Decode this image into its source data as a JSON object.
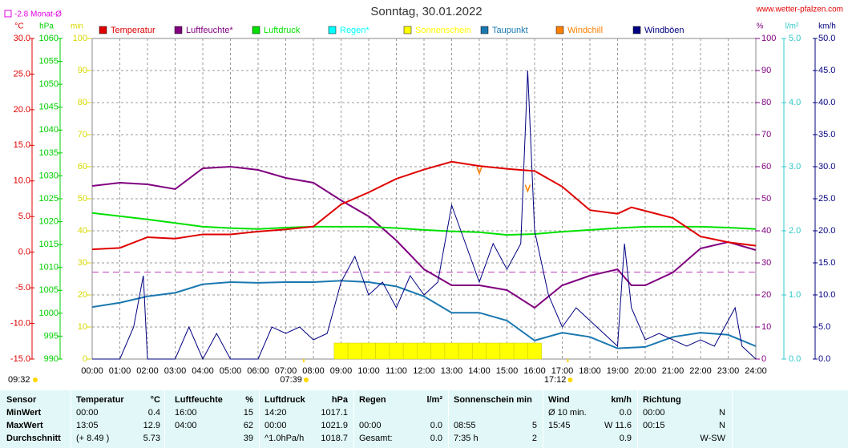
{
  "chart_data": {
    "type": "line",
    "title": "Sonntag, 30.01.2022",
    "source": "www.wetter-pfalzen.com",
    "monthly_average": {
      "value": -2.8,
      "label": "-2.8 Monat-Ø",
      "axis": 0
    },
    "updated": "09:32",
    "sunrise": {
      "value": 7.65,
      "label": "07:39"
    },
    "sunset": {
      "value": 17.2,
      "label": "17:12"
    },
    "xlim": [
      0,
      24
    ],
    "xticks": [
      {
        "value": 0,
        "label": "00:00"
      },
      {
        "value": 1,
        "label": "01:00"
      },
      {
        "value": 2,
        "label": "02:00"
      },
      {
        "value": 3,
        "label": "03:00"
      },
      {
        "value": 4,
        "label": "04:00"
      },
      {
        "value": 5,
        "label": "05:00"
      },
      {
        "value": 6,
        "label": "06:00"
      },
      {
        "value": 7,
        "label": "07:00"
      },
      {
        "value": 8,
        "label": "08:00"
      },
      {
        "value": 9,
        "label": "09:00"
      },
      {
        "value": 10,
        "label": "10:00"
      },
      {
        "value": 11,
        "label": "11:00"
      },
      {
        "value": 12,
        "label": "12:00"
      },
      {
        "value": 13,
        "label": "13:00"
      },
      {
        "value": 14,
        "label": "14:00"
      },
      {
        "value": 15,
        "label": "15:00"
      },
      {
        "value": 16,
        "label": "16:00"
      },
      {
        "value": 17,
        "label": "17:00"
      },
      {
        "value": 18,
        "label": "18:00"
      },
      {
        "value": 19,
        "label": "19:00"
      },
      {
        "value": 20,
        "label": "20:00"
      },
      {
        "value": 21,
        "label": "21:00"
      },
      {
        "value": 22,
        "label": "22:00"
      },
      {
        "value": 23,
        "label": "23:00"
      },
      {
        "value": 24,
        "label": "24:00"
      }
    ],
    "grid": true,
    "axes": [
      {
        "unit": "°C",
        "color": "#e00000",
        "lim": [
          -15,
          30
        ],
        "ticks": [
          {
            "value": -15,
            "label": "-15.0"
          },
          {
            "value": -10,
            "label": "-10.0"
          },
          {
            "value": -5,
            "label": "-5.0"
          },
          {
            "value": 0,
            "label": "0.0"
          },
          {
            "value": 5,
            "label": "5.0"
          },
          {
            "value": 10,
            "label": "10.0"
          },
          {
            "value": 15,
            "label": "15.0"
          },
          {
            "value": 20,
            "label": "20.0"
          },
          {
            "value": 25,
            "label": "25.0"
          },
          {
            "value": 30,
            "label": "30.0"
          }
        ]
      },
      {
        "unit": "hPa",
        "color": "#00d000",
        "lim": [
          990,
          1060
        ],
        "ticks": [
          990,
          995,
          1000,
          1005,
          1010,
          1015,
          1020,
          1025,
          1030,
          1035,
          1040,
          1045,
          1050,
          1055,
          1060
        ]
      },
      {
        "unit": "min",
        "color": "#d8d800",
        "lim": [
          0,
          100
        ],
        "ticks": [
          0,
          10,
          20,
          30,
          40,
          50,
          60,
          70,
          80,
          90,
          100
        ]
      },
      {
        "unit": "%",
        "color": "#800080",
        "lim": [
          0,
          100
        ],
        "ticks": [
          0,
          10,
          20,
          30,
          40,
          50,
          60,
          70,
          80,
          90,
          100
        ]
      },
      {
        "unit": "l/m²",
        "color": "#30c8c8",
        "lim": [
          0,
          5
        ],
        "ticks": [
          {
            "value": 0,
            "label": "0.0"
          },
          {
            "value": 1,
            "label": "1.0"
          },
          {
            "value": 2,
            "label": "2.0"
          },
          {
            "value": 3,
            "label": "3.0"
          },
          {
            "value": 4,
            "label": "4.0"
          },
          {
            "value": 5,
            "label": "5.0"
          }
        ]
      },
      {
        "unit": "km/h",
        "color": "#000080",
        "lim": [
          0,
          50
        ],
        "ticks": [
          {
            "value": 0,
            "label": "0.0"
          },
          {
            "value": 5,
            "label": "5.0"
          },
          {
            "value": 10,
            "label": "10.0"
          },
          {
            "value": 15,
            "label": "15.0"
          },
          {
            "value": 20,
            "label": "20.0"
          },
          {
            "value": 25,
            "label": "25.0"
          },
          {
            "value": 30,
            "label": "30.0"
          },
          {
            "value": 35,
            "label": "35.0"
          },
          {
            "value": 40,
            "label": "40.0"
          },
          {
            "value": 45,
            "label": "45.0"
          },
          {
            "value": 50,
            "label": "50.0"
          }
        ]
      }
    ],
    "series": [
      {
        "name": "Temperatur",
        "color": "#e00000",
        "axis": 0,
        "style": "line",
        "x": [
          0,
          1,
          2,
          3,
          4,
          5,
          6,
          7,
          8,
          9,
          10,
          11,
          12,
          13,
          14,
          15,
          16,
          17,
          18,
          19,
          19.5,
          20,
          21,
          22,
          23,
          24
        ],
        "values": [
          0.4,
          0.6,
          2.1,
          1.9,
          2.5,
          2.5,
          2.9,
          3.2,
          3.6,
          6.7,
          8.4,
          10.3,
          11.6,
          12.7,
          12.1,
          11.7,
          11.4,
          9.2,
          5.9,
          5.4,
          6.3,
          5.8,
          4.8,
          2.2,
          1.4,
          0.9
        ]
      },
      {
        "name": "Luftfeuchte*",
        "color": "#800080",
        "axis": 3,
        "style": "line",
        "x": [
          0,
          1,
          2,
          3,
          4,
          5,
          6,
          7,
          8,
          9,
          10,
          11,
          12,
          13,
          14,
          15,
          16,
          17,
          18,
          19,
          19.5,
          20,
          21,
          22,
          23,
          24
        ],
        "values": [
          54,
          55,
          54.5,
          53,
          59.5,
          60,
          59,
          56.5,
          55,
          49.5,
          44.5,
          37,
          28,
          23,
          23,
          21.5,
          16,
          23,
          26,
          28,
          23,
          23,
          27,
          34.5,
          36.5,
          34
        ]
      },
      {
        "name": "Luftdruck",
        "color": "#00e000",
        "axis": 1,
        "style": "line",
        "x": [
          0,
          1,
          2,
          3,
          4,
          5,
          6,
          7,
          8,
          9,
          10,
          11,
          12,
          13,
          14,
          15,
          16,
          17,
          18,
          19,
          20,
          21,
          22,
          23,
          24
        ],
        "values": [
          1021.9,
          1021.2,
          1020.5,
          1019.7,
          1018.9,
          1018.6,
          1018.4,
          1018.7,
          1018.9,
          1018.9,
          1018.9,
          1018.6,
          1018.2,
          1017.9,
          1017.7,
          1017.1,
          1017.3,
          1017.8,
          1018.2,
          1018.6,
          1018.9,
          1018.9,
          1018.9,
          1018.7,
          1018.4
        ]
      },
      {
        "name": "Regen*",
        "color": "#00ffff",
        "axis": 4,
        "style": "line",
        "x": [],
        "values": []
      },
      {
        "name": "Sonnenschein",
        "color": "#ffff00",
        "axis": 2,
        "style": "bar",
        "x": [
          9,
          9.5,
          10,
          10.5,
          11,
          11.5,
          12,
          12.5,
          13,
          13.5,
          14,
          14.5,
          15,
          15.5,
          16
        ],
        "values": [
          5,
          5,
          5,
          5,
          5,
          5,
          5,
          5,
          5,
          5,
          5,
          5,
          5,
          5,
          5
        ]
      },
      {
        "name": "Taupunkt",
        "color": "#1a78b0",
        "axis": 0,
        "style": "line",
        "x": [
          0,
          1,
          2,
          3,
          4,
          5,
          6,
          7,
          8,
          9,
          10,
          11,
          12,
          13,
          14,
          15,
          16,
          17,
          18,
          19,
          20,
          21,
          22,
          23,
          24
        ],
        "values": [
          -7.7,
          -7.1,
          -6.2,
          -5.7,
          -4.5,
          -4.2,
          -4.3,
          -4.2,
          -4.2,
          -4.0,
          -4.2,
          -4.8,
          -6.2,
          -8.5,
          -8.5,
          -9.6,
          -12.4,
          -11.3,
          -11.9,
          -13.5,
          -13.3,
          -11.9,
          -11.3,
          -11.6,
          -13.2
        ]
      },
      {
        "name": "Windchill",
        "color": "#ff8000",
        "axis": 0,
        "style": "marker",
        "x": [
          14,
          15.75
        ],
        "values": [
          11.5,
          9.0
        ]
      },
      {
        "name": "Windböen",
        "color": "#000080",
        "axis": 5,
        "style": "line",
        "x": [
          0,
          0.5,
          1,
          1.5,
          1.85,
          2,
          2.5,
          3,
          3.5,
          4,
          4.5,
          5,
          5.5,
          6,
          6.5,
          7,
          7.5,
          8,
          8.5,
          9,
          9.5,
          10,
          10.5,
          11,
          11.5,
          12,
          12.5,
          13,
          13.5,
          14,
          14.5,
          15,
          15.5,
          15.75,
          16,
          16.5,
          17,
          17.5,
          18,
          18.5,
          19,
          19.25,
          19.5,
          20,
          20.5,
          21,
          21.5,
          22,
          22.5,
          23,
          23.25,
          23.5,
          24
        ],
        "values": [
          0,
          0,
          0,
          5,
          13,
          0,
          0,
          0,
          5,
          0,
          4,
          0,
          0,
          0,
          5,
          4,
          5,
          3,
          4,
          12,
          16,
          10,
          12,
          8,
          13,
          10,
          12,
          24,
          18,
          12,
          18,
          14,
          18,
          45,
          20,
          10,
          5,
          8,
          6,
          4,
          2,
          18,
          8,
          3,
          4,
          3,
          2,
          3,
          2,
          6,
          8,
          2,
          0
        ]
      }
    ]
  },
  "table": {
    "header": [
      {
        "left": "Sensor"
      },
      {
        "left": "Temperatur",
        "right": "°C"
      },
      {
        "left": "Luftfeuchte",
        "right": "%"
      },
      {
        "left": "Luftdruck",
        "right": "hPa"
      },
      {
        "left": "Regen",
        "right": "l/m²"
      },
      {
        "left": "Sonnenschein min"
      },
      {
        "left": "Wind",
        "right": "km/h"
      },
      {
        "left": "Richtung"
      }
    ],
    "rows": [
      [
        {
          "left": "MinWert"
        },
        {
          "left": "00:00",
          "right": "0.4"
        },
        {
          "left": "16:00",
          "right": "15"
        },
        {
          "left": "14:20",
          "right": "1017.1"
        },
        {},
        {},
        {
          "left": "Ø 10 min.",
          "right": "0.0"
        },
        {
          "left": "00:00",
          "right": "N"
        }
      ],
      [
        {
          "left": "MaxWert"
        },
        {
          "left": "13:05",
          "right": "12.9"
        },
        {
          "left": "04:00",
          "right": "62"
        },
        {
          "left": "00:00",
          "right": "1021.9"
        },
        {
          "left": "00:00",
          "right": "0.0"
        },
        {
          "left": "08:55",
          "right": "5"
        },
        {
          "left": "15:45",
          "right": "W 11.6"
        },
        {
          "left": "00:15",
          "right": "N"
        }
      ],
      [
        {
          "left": "Durchschnitt"
        },
        {
          "left": "(+ 8.49 )",
          "right": "5.73"
        },
        {
          "right": "39"
        },
        {
          "left": "^1.0hPa/h",
          "right": "1018.7"
        },
        {
          "left": "Gesamt:",
          "right": "0.0"
        },
        {
          "left": "7:35 h",
          "right": "2"
        },
        {
          "right": "0.9"
        },
        {
          "right": "W-SW"
        }
      ]
    ]
  }
}
